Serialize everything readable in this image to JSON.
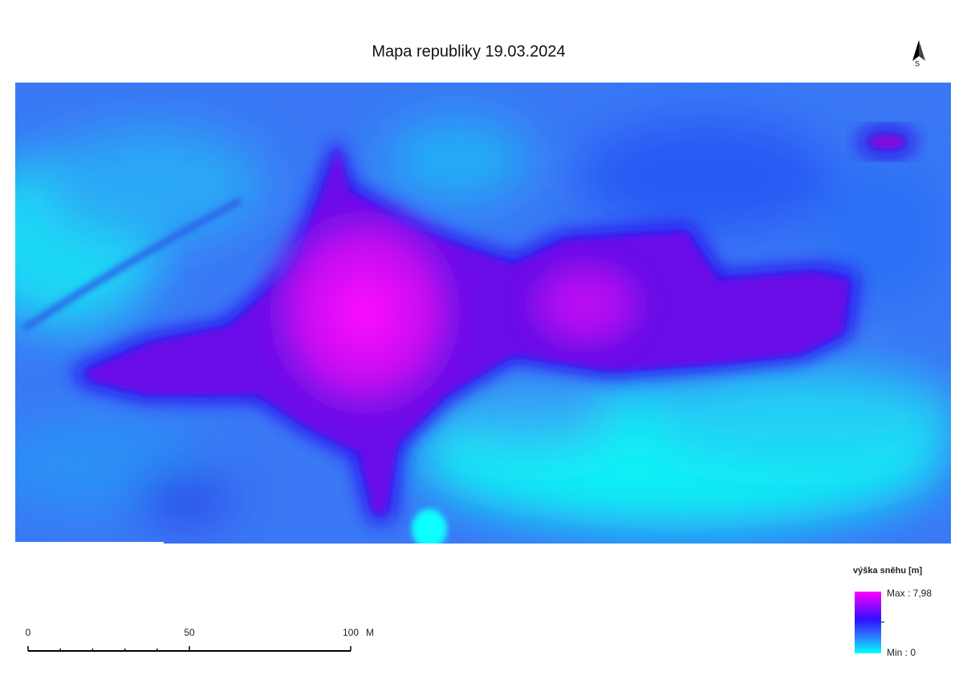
{
  "title": "Mapa republiky 19.03.2024",
  "north_arrow": {
    "label": "S"
  },
  "legend": {
    "title": "výška sněhu [m]",
    "max_label": "Max : 7,98",
    "min_label": "Min : 0"
  },
  "scale_bar": {
    "ticks": [
      0,
      50,
      100
    ],
    "unit": "M"
  }
}
